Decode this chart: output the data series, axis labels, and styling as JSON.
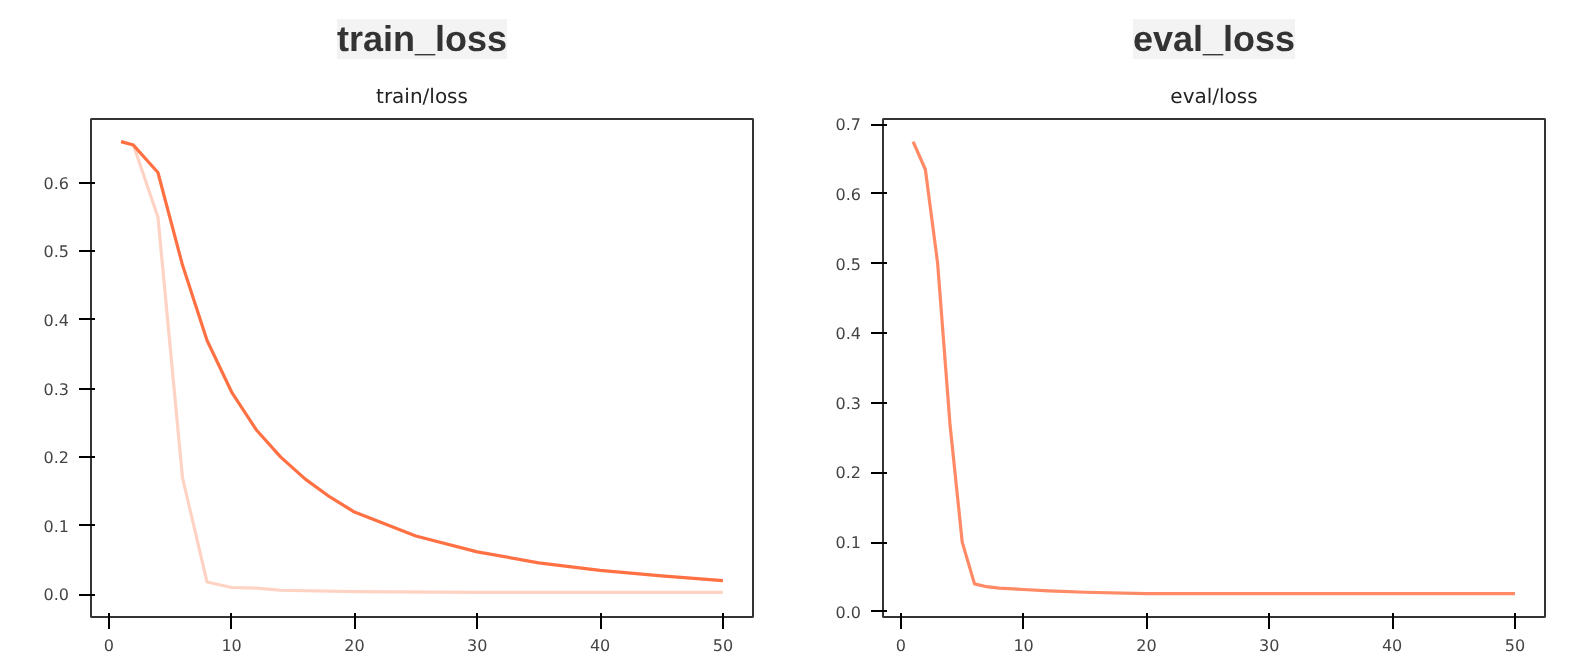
{
  "chart_data": [
    {
      "type": "line",
      "title": "train_loss",
      "subtitle": "train/loss",
      "xlim": [
        -1.45,
        52.45
      ],
      "ylim": [
        -0.033,
        0.693
      ],
      "xticks": [
        0,
        10,
        20,
        30,
        40,
        50
      ],
      "yticks": [
        {
          "value": 0,
          "label": "0.0"
        },
        0.1,
        0.2,
        0.3,
        0.4,
        0.5,
        0.6
      ],
      "grid": false,
      "series": [
        {
          "color": "#ffd3c4",
          "x": [
            1,
            2,
            4,
            6,
            8,
            10,
            12,
            14,
            20,
            30,
            40,
            50
          ],
          "values": [
            0.66,
            0.655,
            0.55,
            0.17,
            0.018,
            0.01,
            0.009,
            0.006,
            0.004,
            0.003,
            0.003,
            0.003
          ]
        },
        {
          "color": "#ff7043",
          "x": [
            1,
            2,
            4,
            6,
            8,
            10,
            12,
            14,
            16,
            18,
            20,
            25,
            30,
            35,
            40,
            45,
            50
          ],
          "values": [
            0.66,
            0.655,
            0.615,
            0.48,
            0.37,
            0.295,
            0.24,
            0.2,
            0.168,
            0.142,
            0.12,
            0.085,
            0.062,
            0.046,
            0.035,
            0.027,
            0.02
          ]
        }
      ]
    },
    {
      "type": "line",
      "title": "eval_loss",
      "subtitle": "eval/loss",
      "xlim": [
        -1.45,
        52.45
      ],
      "ylim": [
        -0.0075,
        0.7075
      ],
      "xticks": [
        0,
        10,
        20,
        30,
        40,
        50
      ],
      "yticks": [
        {
          "value": 0,
          "label": "0.0"
        },
        0.1,
        0.2,
        0.3,
        0.4,
        0.5,
        0.6,
        0.7
      ],
      "grid": false,
      "series": [
        {
          "color": "#ff8a65",
          "x": [
            1,
            2,
            3,
            4,
            5,
            6,
            7,
            8,
            10,
            12,
            15,
            20,
            30,
            40,
            50
          ],
          "values": [
            0.675,
            0.635,
            0.5,
            0.27,
            0.1,
            0.04,
            0.036,
            0.034,
            0.032,
            0.03,
            0.028,
            0.026,
            0.026,
            0.026,
            0.026
          ]
        }
      ]
    }
  ]
}
